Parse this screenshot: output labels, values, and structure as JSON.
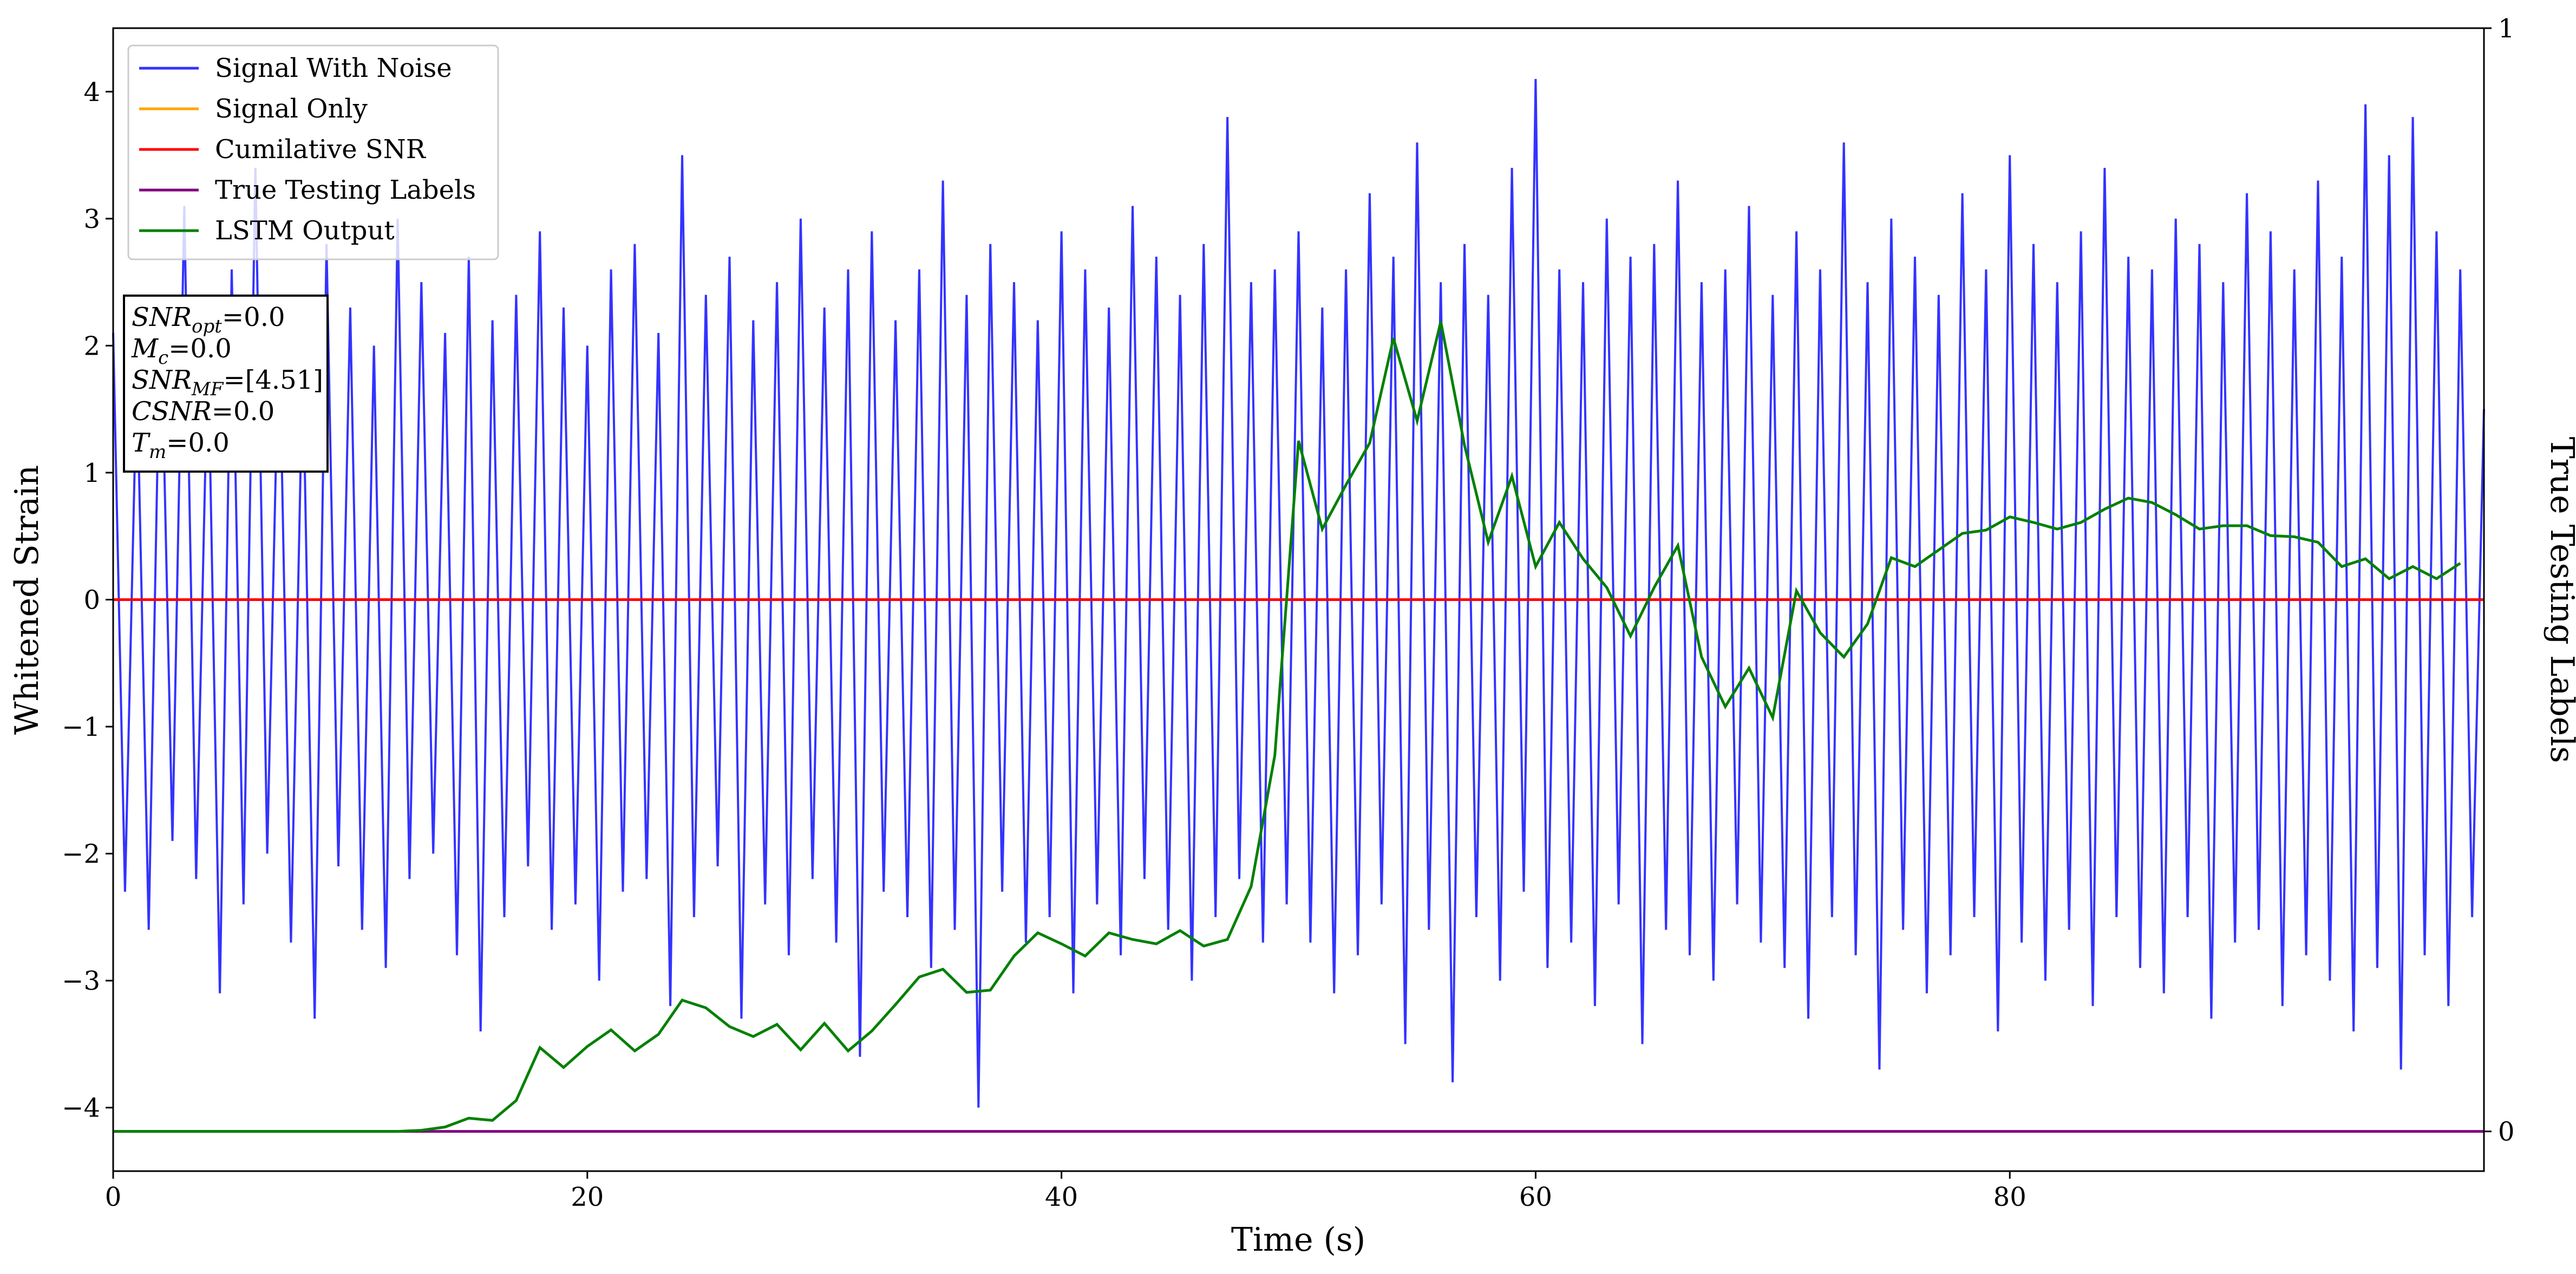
{
  "chart_data": {
    "type": "line",
    "xlabel": "Time (s)",
    "ylabel": "Whitened Strain",
    "y2label": "True Testing Labels",
    "xlim": [
      0,
      100
    ],
    "ylim": [
      -4.5,
      4.5
    ],
    "y2lim": [
      -0.036,
      1
    ],
    "xticks": [
      0,
      20,
      40,
      60,
      80
    ],
    "yticks": [
      -4,
      -3,
      -2,
      -1,
      0,
      1,
      2,
      3,
      4
    ],
    "y2ticks": [
      0,
      1
    ],
    "legend": "upper left",
    "grid": false,
    "annotation": [
      {
        "base": "SNR",
        "sub": "opt",
        "rest": "=0.0"
      },
      {
        "base": "M",
        "sub": "c",
        "rest": "=0.0"
      },
      {
        "base": "SNR",
        "sub": "MF",
        "rest": "=[4.51]"
      },
      {
        "base": "CSNR",
        "sub": "",
        "rest": "=0.0"
      },
      {
        "base": "T",
        "sub": "m",
        "rest": "=0.0"
      }
    ],
    "series": [
      {
        "name": "Signal With Noise",
        "color": "#3333ff",
        "x": [
          0,
          0.5,
          1,
          1.5,
          2,
          2.5,
          3,
          3.5,
          4,
          4.5,
          5,
          5.5,
          6,
          6.5,
          7,
          7.5,
          8,
          8.5,
          9,
          9.5,
          10,
          10.5,
          11,
          11.5,
          12,
          12.5,
          13,
          13.5,
          14,
          14.5,
          15,
          15.5,
          16,
          16.5,
          17,
          17.5,
          18,
          18.5,
          19,
          19.5,
          20,
          20.5,
          21,
          21.5,
          22,
          22.5,
          23,
          23.5,
          24,
          24.5,
          25,
          25.5,
          26,
          26.5,
          27,
          27.5,
          28,
          28.5,
          29,
          29.5,
          30,
          30.5,
          31,
          31.5,
          32,
          32.5,
          33,
          33.5,
          34,
          34.5,
          35,
          35.5,
          36,
          36.5,
          37,
          37.5,
          38,
          38.5,
          39,
          39.5,
          40,
          40.5,
          41,
          41.5,
          42,
          42.5,
          43,
          43.5,
          44,
          44.5,
          45,
          45.5,
          46,
          46.5,
          47,
          47.5,
          48,
          48.5,
          49,
          49.5,
          50,
          50.5,
          51,
          51.5,
          52,
          52.5,
          53,
          53.5,
          54,
          54.5,
          55,
          55.5,
          56,
          56.5,
          57,
          57.5,
          58,
          58.5,
          59,
          59.5,
          60,
          60.5,
          61,
          61.5,
          62,
          62.5,
          63,
          63.5,
          64,
          64.5,
          65,
          65.5,
          66,
          66.5,
          67,
          67.5,
          68,
          68.5,
          69,
          69.5,
          70,
          70.5,
          71,
          71.5,
          72,
          72.5,
          73,
          73.5,
          74,
          74.5,
          75,
          75.5,
          76,
          76.5,
          77,
          77.5,
          78,
          78.5,
          79,
          79.5,
          80,
          80.5,
          81,
          81.5,
          82,
          82.5,
          83,
          83.5,
          84,
          84.5,
          85,
          85.5,
          86,
          86.5,
          87,
          87.5,
          88,
          88.5,
          89,
          89.5,
          90,
          90.5,
          91,
          91.5,
          92,
          92.5,
          93,
          93.5,
          94,
          94.5,
          95,
          95.5,
          96,
          96.5,
          97,
          97.5,
          98,
          98.5,
          99,
          99.5,
          100
        ],
        "values": [
          2.1,
          -2.3,
          1.8,
          -2.6,
          2.4,
          -1.9,
          3.1,
          -2.2,
          2.0,
          -3.1,
          2.6,
          -2.4,
          3.4,
          -2.0,
          2.2,
          -2.7,
          1.9,
          -3.3,
          2.8,
          -2.1,
          2.3,
          -2.6,
          2.0,
          -2.9,
          3.0,
          -2.2,
          2.5,
          -2.0,
          2.1,
          -2.8,
          2.7,
          -3.4,
          2.2,
          -2.5,
          2.4,
          -2.1,
          2.9,
          -2.6,
          2.3,
          -2.4,
          2.0,
          -3.0,
          2.6,
          -2.3,
          2.8,
          -2.2,
          2.1,
          -3.2,
          3.5,
          -2.5,
          2.4,
          -2.1,
          2.7,
          -3.3,
          2.2,
          -2.4,
          2.5,
          -2.8,
          3.0,
          -2.2,
          2.3,
          -2.7,
          2.6,
          -3.6,
          2.9,
          -2.3,
          2.2,
          -2.5,
          2.6,
          -2.9,
          3.3,
          -2.6,
          2.4,
          -4.0,
          2.8,
          -2.3,
          2.5,
          -2.7,
          2.2,
          -2.5,
          2.9,
          -3.1,
          2.6,
          -2.4,
          2.3,
          -2.8,
          3.1,
          -2.2,
          2.7,
          -2.6,
          2.4,
          -3.0,
          2.8,
          -2.5,
          3.8,
          -2.2,
          2.5,
          -2.7,
          2.6,
          -2.4,
          2.9,
          -2.7,
          2.3,
          -3.1,
          2.6,
          -2.8,
          3.2,
          -2.4,
          2.7,
          -3.5,
          3.6,
          -2.6,
          2.5,
          -3.8,
          2.8,
          -2.5,
          2.4,
          -3.0,
          3.4,
          -2.3,
          4.1,
          -2.9,
          2.6,
          -2.7,
          2.5,
          -3.2,
          3.0,
          -2.4,
          2.7,
          -3.5,
          2.8,
          -2.6,
          3.3,
          -2.8,
          2.5,
          -3.0,
          2.6,
          -2.4,
          3.1,
          -2.7,
          2.4,
          -2.9,
          2.9,
          -3.3,
          2.6,
          -2.5,
          3.6,
          -2.8,
          2.5,
          -3.7,
          3.0,
          -2.6,
          2.7,
          -3.1,
          2.4,
          -2.8,
          3.2,
          -2.5,
          2.6,
          -3.4,
          3.5,
          -2.7,
          2.8,
          -3.0,
          2.5,
          -2.6,
          2.9,
          -3.2,
          3.4,
          -2.5,
          2.7,
          -2.9,
          2.6,
          -3.1,
          3.0,
          -2.5,
          2.8,
          -3.3,
          2.5,
          -2.7,
          3.2,
          -2.6,
          2.9,
          -3.2,
          2.6,
          -2.8,
          3.3,
          -3.0,
          2.7,
          -3.4,
          3.9,
          -2.9,
          3.5,
          -3.7,
          3.8,
          -2.8,
          2.9,
          -3.2,
          2.6,
          -2.5,
          1.5
        ]
      },
      {
        "name": "Signal Only",
        "color": "#ffa500",
        "x": [
          0,
          100
        ],
        "values": [
          0,
          0
        ]
      },
      {
        "name": "Cumilative SNR",
        "color": "#ff0000",
        "x": [
          0,
          100
        ],
        "values": [
          0,
          0
        ]
      },
      {
        "name": "True Testing Labels",
        "color": "#800080",
        "axis": "y2",
        "x": [
          0,
          100
        ],
        "values": [
          0,
          0
        ]
      },
      {
        "name": "LSTM Output",
        "color": "#008000",
        "axis": "y2",
        "x": [
          0,
          1,
          2,
          3,
          4,
          5,
          6,
          7,
          8,
          9,
          10,
          11,
          12,
          13,
          14,
          15,
          16,
          17,
          18,
          19,
          20,
          21,
          22,
          23,
          24,
          25,
          26,
          27,
          28,
          29,
          30,
          31,
          32,
          33,
          34,
          35,
          36,
          37,
          38,
          39,
          40,
          41,
          42,
          43,
          44,
          45,
          46,
          47,
          48,
          49,
          50,
          51,
          52,
          53,
          54,
          55,
          56,
          57,
          58,
          59,
          60,
          61,
          62,
          63,
          64,
          65,
          66,
          67,
          68,
          69,
          70,
          71,
          72,
          73,
          74,
          75,
          76,
          77,
          78,
          79,
          80,
          81,
          82,
          83,
          84,
          85,
          86,
          87,
          88,
          89,
          90,
          91,
          92,
          93,
          94,
          95,
          96,
          97,
          98,
          99
        ],
        "values": [
          0,
          0,
          0,
          0,
          0,
          0,
          0,
          0,
          0,
          0,
          0,
          0,
          0,
          0.001,
          0.004,
          0.012,
          0.01,
          0.028,
          0.076,
          0.058,
          0.077,
          0.092,
          0.073,
          0.088,
          0.119,
          0.112,
          0.095,
          0.086,
          0.097,
          0.074,
          0.098,
          0.073,
          0.091,
          0.115,
          0.14,
          0.147,
          0.126,
          0.128,
          0.159,
          0.18,
          0.17,
          0.159,
          0.18,
          0.174,
          0.17,
          0.182,
          0.168,
          0.174,
          0.222,
          0.341,
          0.626,
          0.546,
          0.586,
          0.624,
          0.719,
          0.644,
          0.734,
          0.622,
          0.534,
          0.594,
          0.512,
          0.552,
          0.519,
          0.493,
          0.449,
          0.493,
          0.531,
          0.43,
          0.385,
          0.42,
          0.375,
          0.49,
          0.452,
          0.43,
          0.46,
          0.52,
          0.512,
          0.527,
          0.542,
          0.545,
          0.557,
          0.552,
          0.546,
          0.552,
          0.564,
          0.574,
          0.57,
          0.559,
          0.546,
          0.549,
          0.549,
          0.54,
          0.539,
          0.534,
          0.512,
          0.519,
          0.501,
          0.512,
          0.501,
          0.515
        ]
      }
    ]
  }
}
